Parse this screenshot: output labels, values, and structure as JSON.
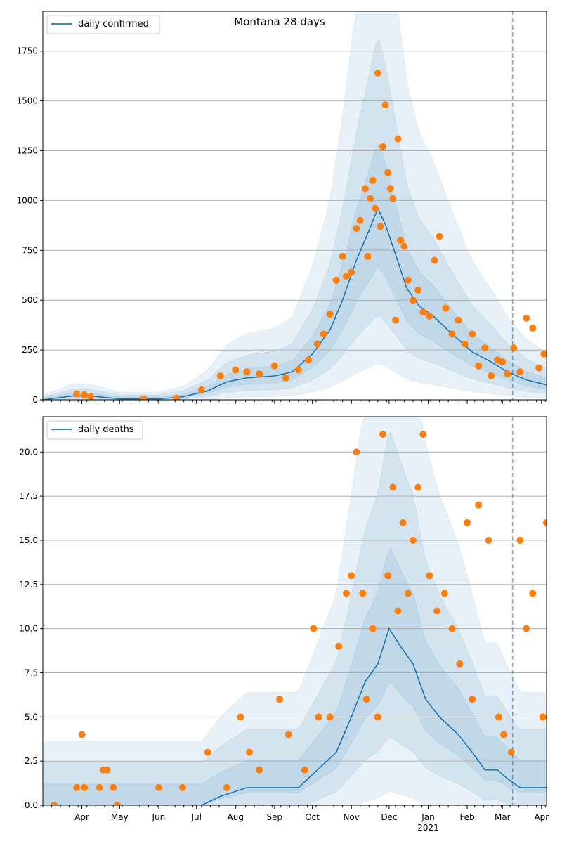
{
  "figure": {
    "title": "Montana 28 days"
  },
  "chart_data": [
    {
      "type": "line",
      "legend": {
        "label": "daily confirmed",
        "placement": "upper left"
      },
      "grid": "horizontal",
      "x_range": [
        "2020-03-01",
        "2021-04-05"
      ],
      "ylim": [
        0,
        1950
      ],
      "yticks": [
        0,
        250,
        500,
        750,
        1000,
        1250,
        1500,
        1750
      ],
      "ytick_labels": [
        "0",
        "250",
        "500",
        "750",
        "1000",
        "1250",
        "1500",
        "1750"
      ],
      "vline_date": "2021-03-09",
      "colors": {
        "line": "#1f77b4",
        "points": "#ff7f0e",
        "bands": "#1f77b4"
      },
      "series": [
        {
          "name": "daily confirmed",
          "x": [
            "2020-03-01",
            "2020-03-25",
            "2020-04-10",
            "2020-05-01",
            "2020-06-01",
            "2020-06-20",
            "2020-07-10",
            "2020-07-25",
            "2020-08-10",
            "2020-09-01",
            "2020-09-15",
            "2020-10-01",
            "2020-10-15",
            "2020-10-25",
            "2020-11-05",
            "2020-11-15",
            "2020-11-22",
            "2020-11-28",
            "2020-12-05",
            "2020-12-15",
            "2020-12-25",
            "2021-01-05",
            "2021-01-20",
            "2021-02-05",
            "2021-02-20",
            "2021-03-05",
            "2021-03-20",
            "2021-04-05"
          ],
          "y": [
            0,
            20,
            18,
            5,
            5,
            15,
            45,
            90,
            110,
            120,
            140,
            230,
            350,
            500,
            700,
            850,
            960,
            880,
            750,
            560,
            470,
            420,
            330,
            240,
            190,
            140,
            100,
            75
          ]
        }
      ],
      "points": {
        "x": [
          "2020-03-28",
          "2020-04-03",
          "2020-04-08",
          "2020-05-20",
          "2020-06-15",
          "2020-07-05",
          "2020-07-20",
          "2020-08-01",
          "2020-08-10",
          "2020-08-20",
          "2020-09-01",
          "2020-09-10",
          "2020-09-20",
          "2020-09-28",
          "2020-10-05",
          "2020-10-10",
          "2020-10-15",
          "2020-10-20",
          "2020-10-25",
          "2020-10-28",
          "2020-11-01",
          "2020-11-05",
          "2020-11-08",
          "2020-11-12",
          "2020-11-14",
          "2020-11-16",
          "2020-11-18",
          "2020-11-20",
          "2020-11-22",
          "2020-11-24",
          "2020-11-26",
          "2020-11-28",
          "2020-11-30",
          "2020-12-02",
          "2020-12-04",
          "2020-12-06",
          "2020-12-08",
          "2020-12-10",
          "2020-12-13",
          "2020-12-16",
          "2020-12-20",
          "2020-12-24",
          "2020-12-28",
          "2021-01-02",
          "2021-01-06",
          "2021-01-10",
          "2021-01-15",
          "2021-01-20",
          "2021-01-25",
          "2021-01-30",
          "2021-02-05",
          "2021-02-10",
          "2021-02-15",
          "2021-02-20",
          "2021-02-25",
          "2021-03-01",
          "2021-03-05",
          "2021-03-10",
          "2021-03-15",
          "2021-03-20",
          "2021-03-25",
          "2021-03-30",
          "2021-04-03"
        ],
        "y": [
          30,
          25,
          15,
          5,
          8,
          50,
          120,
          150,
          140,
          130,
          170,
          110,
          150,
          200,
          280,
          330,
          430,
          600,
          720,
          620,
          640,
          860,
          900,
          1060,
          720,
          1010,
          1100,
          960,
          1640,
          870,
          1270,
          1480,
          1140,
          1060,
          1010,
          400,
          1310,
          800,
          770,
          600,
          500,
          550,
          440,
          420,
          700,
          820,
          460,
          330,
          400,
          280,
          330,
          170,
          260,
          120,
          200,
          190,
          130,
          260,
          140,
          410,
          360,
          160,
          230
        ]
      }
    },
    {
      "type": "line",
      "legend": {
        "label": "daily deaths",
        "placement": "upper left"
      },
      "grid": "horizontal",
      "x_range": [
        "2020-03-01",
        "2021-04-05"
      ],
      "ylim": [
        0,
        22
      ],
      "yticks": [
        0,
        2.5,
        5,
        7.5,
        10,
        12.5,
        15,
        17.5,
        20
      ],
      "ytick_labels": [
        "0.0",
        "2.5",
        "5.0",
        "7.5",
        "10.0",
        "12.5",
        "15.0",
        "17.5",
        "20.0"
      ],
      "xtick_labels": [
        "Apr",
        "May",
        "Jun",
        "Jul",
        "Aug",
        "Sep",
        "Oct",
        "Nov",
        "Dec",
        "Jan",
        "Feb",
        "Mar",
        "Apr"
      ],
      "year_label": "2021",
      "vline_date": "2021-03-09",
      "colors": {
        "line": "#1f77b4",
        "points": "#ff7f0e",
        "bands": "#1f77b4"
      },
      "series": [
        {
          "name": "daily deaths",
          "x": [
            "2020-03-01",
            "2020-07-05",
            "2020-07-20",
            "2020-08-10",
            "2020-09-01",
            "2020-09-20",
            "2020-10-05",
            "2020-10-20",
            "2020-11-01",
            "2020-11-12",
            "2020-11-22",
            "2020-12-01",
            "2020-12-10",
            "2020-12-20",
            "2020-12-30",
            "2021-01-10",
            "2021-01-25",
            "2021-02-05",
            "2021-02-15",
            "2021-02-25",
            "2021-03-05",
            "2021-03-15",
            "2021-04-05"
          ],
          "y": [
            0,
            0,
            0.5,
            1,
            1,
            1,
            2,
            3,
            5,
            7,
            8,
            10,
            9,
            8,
            6,
            5,
            4,
            3,
            2,
            2,
            1.5,
            1,
            1
          ]
        }
      ],
      "points": {
        "x": [
          "2020-03-10",
          "2020-03-28",
          "2020-04-01",
          "2020-04-03",
          "2020-04-15",
          "2020-04-18",
          "2020-04-21",
          "2020-04-26",
          "2020-04-29",
          "2020-06-01",
          "2020-06-20",
          "2020-07-10",
          "2020-07-25",
          "2020-08-05",
          "2020-08-12",
          "2020-08-20",
          "2020-09-05",
          "2020-09-12",
          "2020-09-25",
          "2020-10-02",
          "2020-10-06",
          "2020-10-15",
          "2020-10-22",
          "2020-10-28",
          "2020-11-01",
          "2020-11-05",
          "2020-11-10",
          "2020-11-13",
          "2020-11-18",
          "2020-11-22",
          "2020-11-26",
          "2020-11-30",
          "2020-12-04",
          "2020-12-08",
          "2020-12-12",
          "2020-12-16",
          "2020-12-20",
          "2020-12-24",
          "2020-12-28",
          "2021-01-02",
          "2021-01-08",
          "2021-01-14",
          "2021-01-20",
          "2021-01-26",
          "2021-02-01",
          "2021-02-05",
          "2021-02-10",
          "2021-02-18",
          "2021-02-26",
          "2021-03-02",
          "2021-03-08",
          "2021-03-15",
          "2021-03-20",
          "2021-03-25",
          "2021-04-02",
          "2021-04-05"
        ],
        "y": [
          0,
          1,
          4,
          1,
          1,
          2,
          2,
          1,
          0,
          1,
          1,
          3,
          1,
          5,
          3,
          2,
          6,
          4,
          2,
          10,
          5,
          5,
          9,
          12,
          13,
          20,
          12,
          6,
          10,
          5,
          21,
          13,
          18,
          11,
          16,
          12,
          15,
          18,
          21,
          13,
          11,
          12,
          10,
          8,
          16,
          6,
          17,
          15,
          5,
          4,
          3,
          15,
          10,
          12,
          5,
          16
        ]
      }
    }
  ]
}
